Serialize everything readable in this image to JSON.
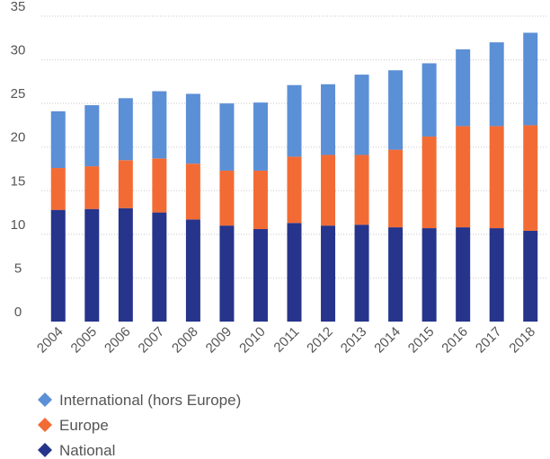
{
  "chart_data": {
    "type": "stacked_bar",
    "categories": [
      "2004",
      "2005",
      "2006",
      "2007",
      "2008",
      "2009",
      "2010",
      "2011",
      "2012",
      "2013",
      "2014",
      "2015",
      "2016",
      "2017",
      "2018"
    ],
    "series": [
      {
        "name": "International (hors Europe)",
        "color": "#5b8fd6",
        "values": [
          6.5,
          7.0,
          7.1,
          7.7,
          8.0,
          7.7,
          7.8,
          8.2,
          8.1,
          9.2,
          9.1,
          8.4,
          8.8,
          9.6,
          10.6
        ]
      },
      {
        "name": "Europe",
        "color": "#f26b35",
        "values": [
          4.8,
          4.9,
          5.5,
          6.2,
          6.4,
          6.3,
          6.7,
          7.6,
          8.1,
          8.0,
          8.9,
          10.5,
          11.6,
          11.7,
          12.1
        ]
      },
      {
        "name": "National",
        "color": "#26348b",
        "values": [
          12.8,
          12.9,
          13.0,
          12.5,
          11.7,
          11.0,
          10.6,
          11.3,
          11.0,
          11.1,
          10.8,
          10.7,
          10.8,
          10.7,
          10.4
        ]
      }
    ],
    "ylim": [
      0,
      35
    ],
    "yticks": [
      0,
      5,
      10,
      15,
      20,
      25,
      30,
      35
    ],
    "grid": true
  }
}
